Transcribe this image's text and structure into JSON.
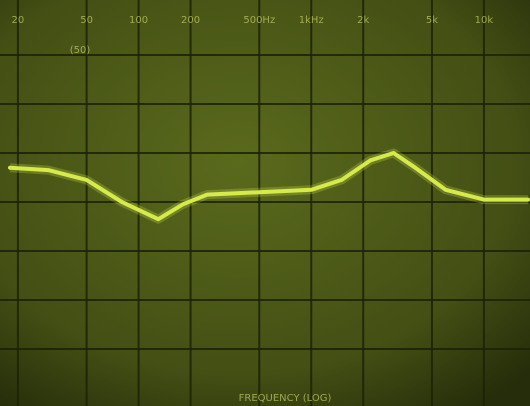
{
  "chart_data": {
    "type": "line",
    "xlabel": "FREQUENCY (LOG)",
    "annotation": "(50)",
    "xscale": "log",
    "xlim": [
      18,
      18000
    ],
    "ylim": [
      0,
      8
    ],
    "xticks": [
      20,
      50,
      100,
      200,
      {
        "value": 500,
        "label": "500Hz"
      },
      {
        "value": 1000,
        "label": "1kHz"
      },
      {
        "value": 2000,
        "label": "2k"
      },
      {
        "value": 5000,
        "label": "5k"
      },
      {
        "value": 10000,
        "label": "10k"
      }
    ],
    "grid": true,
    "color": "#d6ea4c",
    "x": [
      18,
      30,
      50,
      80,
      130,
      180,
      250,
      500,
      1000,
      1500,
      2200,
      3000,
      4000,
      6000,
      10000,
      18000
    ],
    "values": [
      4.7,
      4.65,
      4.45,
      4.0,
      3.65,
      3.95,
      4.15,
      4.2,
      4.25,
      4.45,
      4.85,
      5.0,
      4.7,
      4.25,
      4.05,
      4.05
    ]
  }
}
